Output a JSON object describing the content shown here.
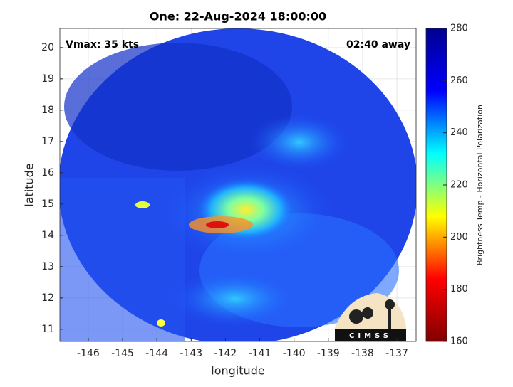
{
  "chart_data": {
    "type": "heatmap",
    "title": "One: 22-Aug-2024 18:00:00",
    "xlabel": "longitude",
    "ylabel": "latitude",
    "annotations": [
      "Vmax: 35 kts",
      "02:40 away"
    ],
    "logo": "CIMSS",
    "xlim": [
      -146.83,
      -136.44
    ],
    "ylim": [
      10.61,
      20.61
    ],
    "xticks": [
      -146,
      -145,
      -144,
      -143,
      -142,
      -141,
      -140,
      -139,
      -138,
      -137
    ],
    "yticks": [
      11,
      12,
      13,
      14,
      15,
      16,
      17,
      18,
      19,
      20
    ],
    "grid": true,
    "colorbar": {
      "label": "Brightness Temp - Horizontal Polarization",
      "lim": [
        160,
        280
      ],
      "ticks": [
        160,
        180,
        200,
        220,
        240,
        260,
        280
      ],
      "colors": [
        "#800000",
        "#ff0000",
        "#ffff00",
        "#00ffff",
        "#0000ff",
        "#00008f"
      ]
    }
  }
}
